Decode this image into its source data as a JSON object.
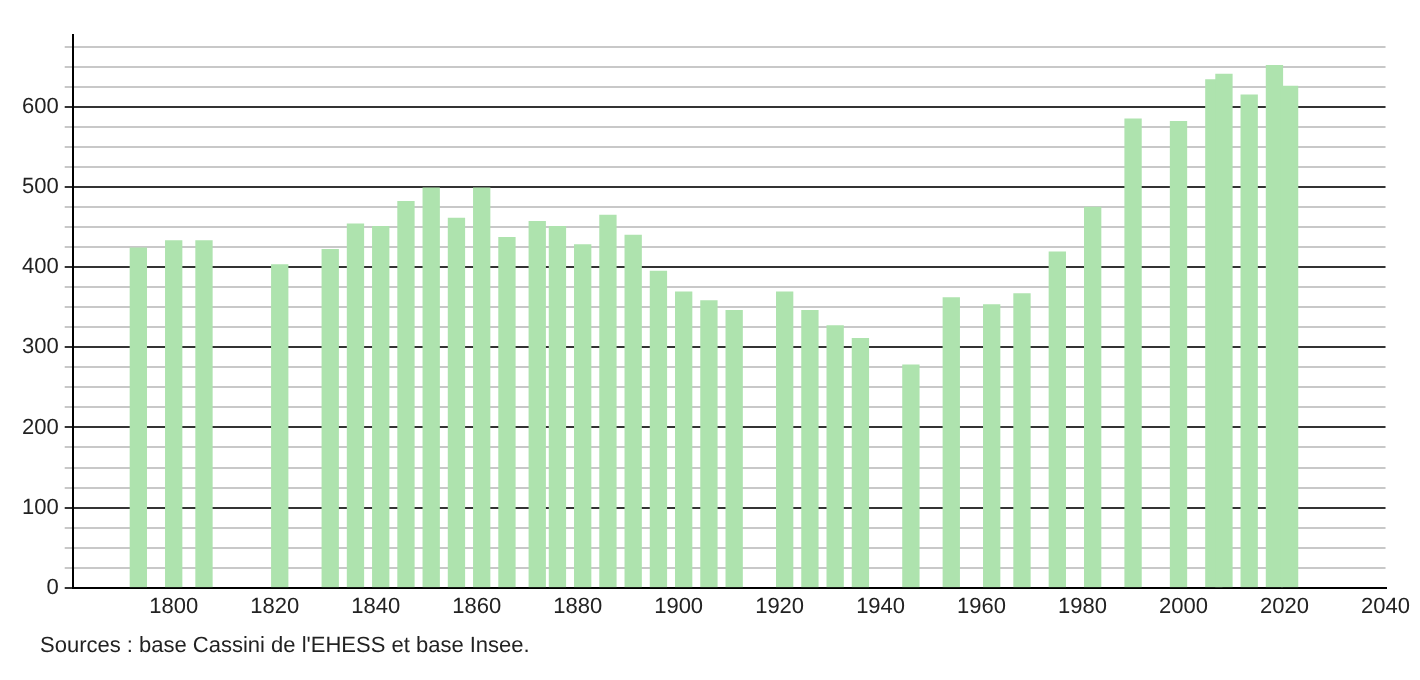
{
  "chart_data": {
    "type": "bar",
    "x": [
      1793,
      1800,
      1806,
      1821,
      1831,
      1836,
      1841,
      1846,
      1851,
      1856,
      1861,
      1866,
      1872,
      1876,
      1881,
      1886,
      1891,
      1896,
      1901,
      1906,
      1911,
      1921,
      1926,
      1931,
      1936,
      1946,
      1954,
      1962,
      1968,
      1975,
      1982,
      1990,
      1999,
      2006,
      2008,
      2013,
      2018,
      2021
    ],
    "values": [
      424,
      433,
      433,
      403,
      422,
      454,
      451,
      482,
      499,
      461,
      499,
      437,
      457,
      451,
      428,
      465,
      440,
      395,
      369,
      358,
      346,
      369,
      346,
      327,
      311,
      278,
      362,
      353,
      367,
      419,
      475,
      585,
      582,
      634,
      641,
      615,
      652,
      626
    ],
    "color": "#aee3ae",
    "xlim": [
      1780,
      2040
    ],
    "xticks": [
      1800,
      1820,
      1840,
      1860,
      1880,
      1900,
      1920,
      1940,
      1960,
      1980,
      2000,
      2020,
      2040
    ],
    "ylim": [
      0,
      690
    ],
    "yticks": [
      0,
      {
        "value": 25,
        "label": null
      },
      {
        "value": 50,
        "label": null
      },
      {
        "value": 75,
        "label": null
      },
      100,
      {
        "value": 125,
        "label": null
      },
      {
        "value": 150,
        "label": null
      },
      {
        "value": 175,
        "label": null
      },
      200,
      {
        "value": 225,
        "label": null
      },
      {
        "value": 250,
        "label": null
      },
      {
        "value": 275,
        "label": null
      },
      300,
      {
        "value": 325,
        "label": null
      },
      {
        "value": 350,
        "label": null
      },
      {
        "value": 375,
        "label": null
      },
      400,
      {
        "value": 425,
        "label": null
      },
      {
        "value": 450,
        "label": null
      },
      {
        "value": 475,
        "label": null
      },
      500,
      {
        "value": 525,
        "label": null
      },
      {
        "value": 550,
        "label": null
      },
      {
        "value": 575,
        "label": null
      },
      600,
      {
        "value": 625,
        "label": null
      },
      {
        "value": 650,
        "label": null
      },
      {
        "value": 675,
        "label": null
      }
    ],
    "grid": "y",
    "annotations": [
      "Sources : base Cassini de l'EHESS et base Insee."
    ]
  }
}
